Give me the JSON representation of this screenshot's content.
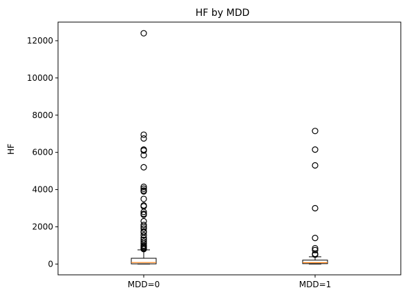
{
  "chart_data": {
    "type": "box",
    "title": "HF by MDD",
    "xlabel": "",
    "ylabel": "HF",
    "ylim": [
      -580,
      13000
    ],
    "yticks": [
      0,
      2000,
      4000,
      6000,
      8000,
      10000,
      12000
    ],
    "grid": false,
    "categories": [
      "MDD=0",
      "MDD=1"
    ],
    "boxes": [
      {
        "label": "MDD=0",
        "whisker_low": 0,
        "q1": 10,
        "median": 80,
        "q3": 310,
        "whisker_high": 760,
        "outliers": [
          12400,
          6950,
          6750,
          6150,
          6100,
          5850,
          5200,
          4150,
          4050,
          3950,
          3900,
          3500,
          3150,
          3100,
          2800,
          2700,
          2650,
          2300,
          2100,
          2000,
          1900,
          1750,
          1700,
          1550,
          1400,
          1300,
          1200,
          1100,
          1000,
          950,
          900,
          850,
          800
        ]
      },
      {
        "label": "MDD=1",
        "whisker_low": 0,
        "q1": 20,
        "median": 75,
        "q3": 210,
        "whisker_high": 390,
        "outliers": [
          7150,
          6150,
          5300,
          3000,
          1400,
          850,
          750,
          550,
          500
        ]
      }
    ],
    "colors": {
      "median": "#ff7f0e",
      "box": "#000000"
    }
  }
}
